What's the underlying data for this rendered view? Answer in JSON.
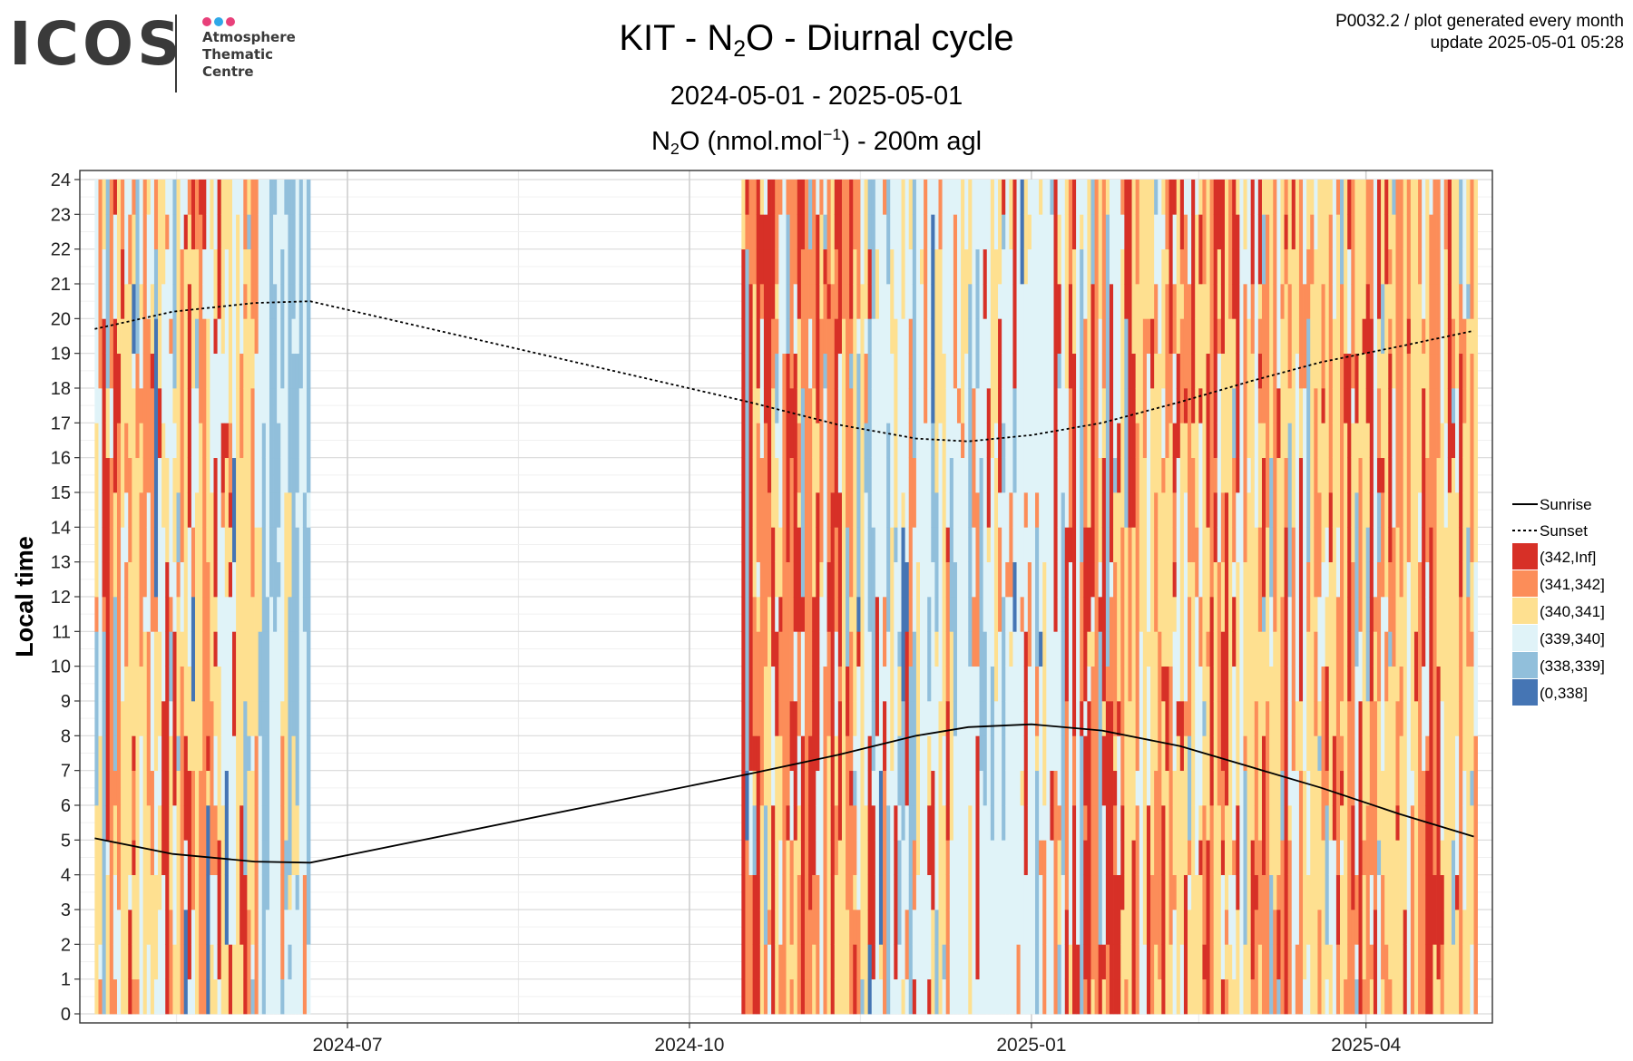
{
  "header": {
    "logo": {
      "word": "ICOS",
      "lines": [
        "Atmosphere",
        "Thematic",
        "Centre"
      ],
      "dot_colors": [
        "#e8407a",
        "#2fa8e8",
        "#e8407a"
      ]
    },
    "title": {
      "pre": "KIT - N",
      "sub": "2",
      "post": "O - Diurnal cycle"
    },
    "date_range": "2024-05-01 - 2025-05-01",
    "species": {
      "pre": "N",
      "sub": "2",
      "mid": "O (nmol.mol",
      "sup": "−1",
      "post": ") - 200m agl"
    },
    "meta_line1": "P0032.2 / plot generated every month",
    "meta_line2": "update  2025-05-01 05:28"
  },
  "chart_data": {
    "type": "heatmap",
    "ylabel": "Local time",
    "y_ticks": [
      0,
      1,
      2,
      3,
      4,
      5,
      6,
      7,
      8,
      9,
      10,
      11,
      12,
      13,
      14,
      15,
      16,
      17,
      18,
      19,
      20,
      21,
      22,
      23,
      24
    ],
    "ylim": [
      0,
      24
    ],
    "xlim": [
      "2024-04-20",
      "2025-05-05"
    ],
    "x_ticks": [
      {
        "date": "2024-07-01",
        "label": "2024-07"
      },
      {
        "date": "2024-10-01",
        "label": "2024-10"
      },
      {
        "date": "2025-01-01",
        "label": "2025-01"
      },
      {
        "date": "2025-04-01",
        "label": "2025-04"
      }
    ],
    "x_minor_ticks": [
      "2024-05-16",
      "2024-08-16",
      "2024-11-16",
      "2025-02-15"
    ],
    "grid": true,
    "legend_position": "right",
    "legend": {
      "lines": [
        {
          "name": "Sunrise",
          "style": "solid"
        },
        {
          "name": "Sunset",
          "style": "dotted"
        }
      ],
      "bins": [
        {
          "label": "(342,Inf]",
          "color": "#d73027"
        },
        {
          "label": "(341,342]",
          "color": "#fc8d59"
        },
        {
          "label": "(340,341]",
          "color": "#fee090"
        },
        {
          "label": "(339,340]",
          "color": "#e0f3f8"
        },
        {
          "label": "(338,339]",
          "color": "#91bfdb"
        },
        {
          "label": "(0,338]",
          "color": "#4575b4"
        }
      ]
    },
    "sunrise": [
      {
        "date": "2024-04-24",
        "hour": 5.05
      },
      {
        "date": "2024-05-15",
        "hour": 4.6
      },
      {
        "date": "2024-06-06",
        "hour": 4.38
      },
      {
        "date": "2024-06-21",
        "hour": 4.35
      },
      {
        "date": "2024-10-17",
        "hour": 6.9
      },
      {
        "date": "2024-11-10",
        "hour": 7.45
      },
      {
        "date": "2024-12-01",
        "hour": 8.0
      },
      {
        "date": "2024-12-15",
        "hour": 8.25
      },
      {
        "date": "2025-01-01",
        "hour": 8.33
      },
      {
        "date": "2025-01-20",
        "hour": 8.15
      },
      {
        "date": "2025-02-10",
        "hour": 7.7
      },
      {
        "date": "2025-03-01",
        "hour": 7.1
      },
      {
        "date": "2025-03-20",
        "hour": 6.5
      },
      {
        "date": "2025-04-10",
        "hour": 5.75
      },
      {
        "date": "2025-04-30",
        "hour": 5.1
      }
    ],
    "sunset": [
      {
        "date": "2024-04-24",
        "hour": 19.7
      },
      {
        "date": "2024-05-15",
        "hour": 20.2
      },
      {
        "date": "2024-06-06",
        "hour": 20.45
      },
      {
        "date": "2024-06-21",
        "hour": 20.5
      },
      {
        "date": "2024-10-17",
        "hour": 17.6
      },
      {
        "date": "2024-11-10",
        "hour": 16.95
      },
      {
        "date": "2024-12-01",
        "hour": 16.55
      },
      {
        "date": "2024-12-15",
        "hour": 16.47
      },
      {
        "date": "2025-01-01",
        "hour": 16.65
      },
      {
        "date": "2025-01-20",
        "hour": 17.0
      },
      {
        "date": "2025-02-10",
        "hour": 17.6
      },
      {
        "date": "2025-03-01",
        "hour": 18.2
      },
      {
        "date": "2025-03-20",
        "hour": 18.75
      },
      {
        "date": "2025-04-10",
        "hour": 19.2
      },
      {
        "date": "2025-04-30",
        "hour": 19.65
      }
    ],
    "coverage_periods": [
      {
        "start": "2024-04-24",
        "end": "2024-06-20"
      },
      {
        "start": "2024-10-15",
        "end": "2025-04-30"
      }
    ],
    "period_bin_weights": [
      [
        {
          "start": "2024-04-24",
          "end": "2024-06-07",
          "weights": [
            0.12,
            0.2,
            0.33,
            0.28,
            0.06,
            0.01
          ]
        },
        {
          "start": "2024-06-07",
          "end": "2024-06-20",
          "weights": [
            0.0,
            0.01,
            0.07,
            0.55,
            0.37,
            0.0
          ]
        }
      ],
      [
        {
          "start": "2024-10-15",
          "end": "2024-11-15",
          "weights": [
            0.27,
            0.33,
            0.18,
            0.14,
            0.07,
            0.01
          ]
        },
        {
          "start": "2024-11-15",
          "end": "2024-12-10",
          "weights": [
            0.08,
            0.12,
            0.17,
            0.42,
            0.19,
            0.02
          ]
        },
        {
          "start": "2024-12-10",
          "end": "2025-01-10",
          "weights": [
            0.05,
            0.08,
            0.1,
            0.66,
            0.1,
            0.01
          ]
        },
        {
          "start": "2025-01-10",
          "end": "2025-01-25",
          "weights": [
            0.25,
            0.25,
            0.2,
            0.22,
            0.08,
            0.0
          ]
        },
        {
          "start": "2025-01-25",
          "end": "2025-04-30",
          "weights": [
            0.13,
            0.27,
            0.42,
            0.14,
            0.04,
            0.0
          ]
        }
      ]
    ]
  }
}
